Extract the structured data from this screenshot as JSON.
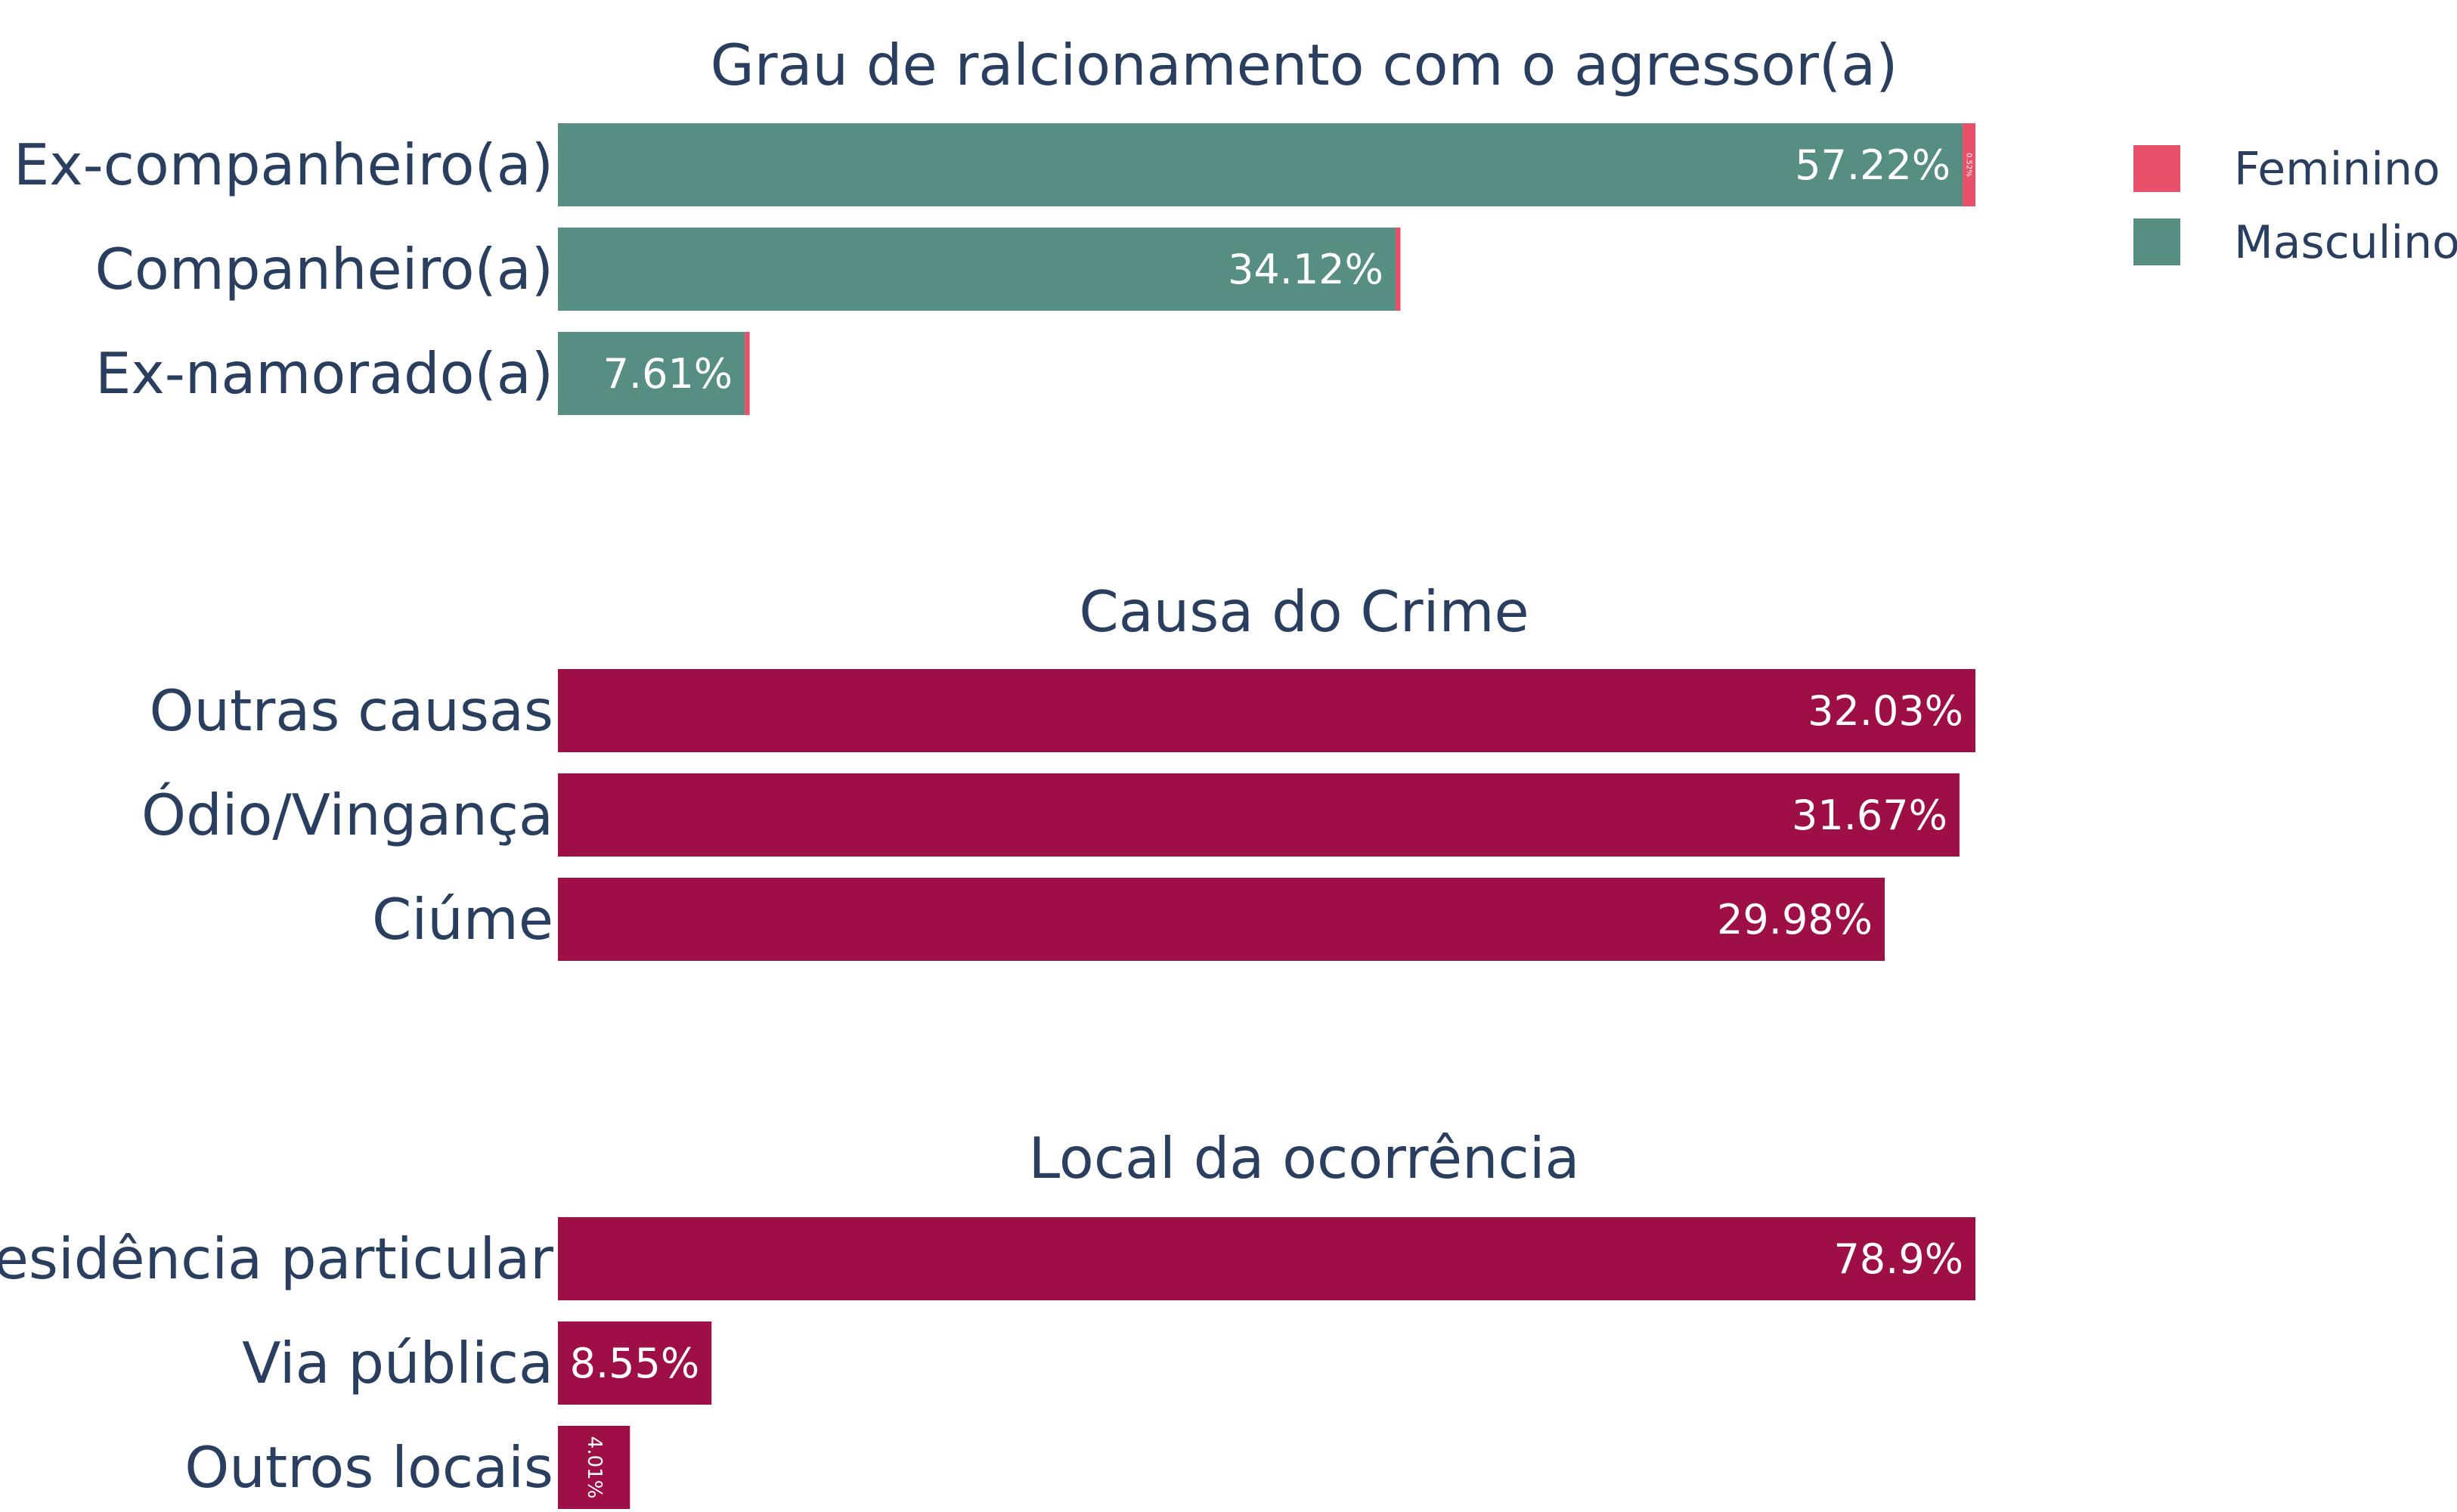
{
  "colors": {
    "feminino": "#e8506a",
    "masculino": "#568e84",
    "single": "#9e0f47",
    "text": "#2a3f5f"
  },
  "legend": {
    "items": [
      {
        "name": "Feminino",
        "color": "#e8506a"
      },
      {
        "name": "Masculino",
        "color": "#568e84"
      }
    ]
  },
  "chart_data": [
    {
      "type": "bar",
      "orientation": "horizontal",
      "stacked": true,
      "title": "Grau de ralcionamento com o agressor(a)",
      "categories": [
        "Ex-companheiro(a)",
        "Companheiro(a)",
        "Ex-namorado(a)"
      ],
      "series": [
        {
          "name": "Masculino",
          "values": [
            57.22,
            34.12,
            7.61
          ],
          "labels": [
            "57.22%",
            "34.12%",
            "7.61%"
          ]
        },
        {
          "name": "Feminino",
          "values": [
            0.52,
            0.2,
            0.2
          ],
          "labels": [
            "0.52%",
            "",
            ""
          ]
        }
      ],
      "legend": "top-right",
      "grid": false
    },
    {
      "type": "bar",
      "orientation": "horizontal",
      "title": "Causa do Crime",
      "categories": [
        "Outras causas",
        "Ódio/Vingança",
        "Ciúme"
      ],
      "values": [
        32.03,
        31.67,
        29.98
      ],
      "labels": [
        "32.03%",
        "31.67%",
        "29.98%"
      ],
      "grid": false
    },
    {
      "type": "bar",
      "orientation": "horizontal",
      "title": "Local da ocorrência",
      "categories": [
        "Residência particular",
        "Via pública",
        "Outros locais"
      ],
      "values": [
        78.9,
        8.55,
        4.01
      ],
      "labels": [
        "78.9%",
        "8.55%",
        "4.01%"
      ],
      "grid": false
    }
  ]
}
